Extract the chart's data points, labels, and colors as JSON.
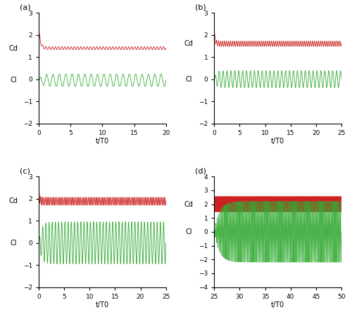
{
  "subplots": [
    {
      "label": "(a)",
      "t_start": 0,
      "t_end": 20,
      "xlim": [
        0,
        20
      ],
      "xticks": [
        0,
        5,
        10,
        15,
        20
      ],
      "ylim": [
        -2,
        3
      ],
      "yticks": [
        -2,
        -1,
        0,
        1,
        2,
        3
      ],
      "cd_mean": 1.4,
      "cd_amp": 0.07,
      "cd_osc_freq": 2.0,
      "cd_transient_amp": 0.9,
      "cd_transient_decay": 4.0,
      "cl_mean": -0.05,
      "cl_amp": 0.28,
      "cl_osc_freq": 1.0,
      "cl_transient_decay": 2.5
    },
    {
      "label": "(b)",
      "t_start": 0,
      "t_end": 25,
      "xlim": [
        0,
        25
      ],
      "xticks": [
        0,
        5,
        10,
        15,
        20,
        25
      ],
      "ylim": [
        -2,
        3
      ],
      "yticks": [
        -2,
        -1,
        0,
        1,
        2,
        3
      ],
      "cd_mean": 1.6,
      "cd_amp": 0.12,
      "cd_osc_freq": 2.6,
      "cd_transient_amp": 0.5,
      "cd_transient_decay": 5.0,
      "cl_mean": 0.0,
      "cl_amp": 0.38,
      "cl_osc_freq": 1.3,
      "cl_transient_decay": 3.0
    },
    {
      "label": "(c)",
      "t_start": 0,
      "t_end": 25,
      "xlim": [
        0,
        25
      ],
      "xticks": [
        0,
        5,
        10,
        15,
        20,
        25
      ],
      "ylim": [
        -2,
        3
      ],
      "yticks": [
        -2,
        -1,
        0,
        1,
        2,
        3
      ],
      "cd_mean": 1.88,
      "cd_amp": 0.18,
      "cd_osc_freq": 3.2,
      "cd_transient_amp": 0.4,
      "cd_transient_decay": 6.0,
      "cl_mean": 0.0,
      "cl_amp": 0.95,
      "cl_osc_freq": 1.6,
      "cl_transient_decay": 2.0
    },
    {
      "label": "(d)",
      "t_start": 25,
      "t_end": 50,
      "xlim": [
        25,
        50
      ],
      "xticks": [
        25,
        30,
        35,
        40,
        45,
        50
      ],
      "ylim": [
        -4,
        4
      ],
      "yticks": [
        -4,
        -3,
        -2,
        -1,
        0,
        1,
        2,
        3,
        4
      ],
      "cd_mean": 2.0,
      "cd_amp": 0.55,
      "cd_osc_freq": 7.5,
      "cd_transient_amp": 0.0,
      "cd_transient_decay": 1.0,
      "cl_mean": 0.0,
      "cl_amp": 2.2,
      "cl_osc_freq": 3.8,
      "cl_transient_decay": 1.0
    }
  ],
  "cd_color": "#cc2222",
  "cl_color": "#33aa33",
  "xlabel": "t/T0",
  "cd_label": "Cd",
  "cl_label": "Cl",
  "linewidth": 0.6,
  "background_color": "#ffffff",
  "n_points": 5000
}
